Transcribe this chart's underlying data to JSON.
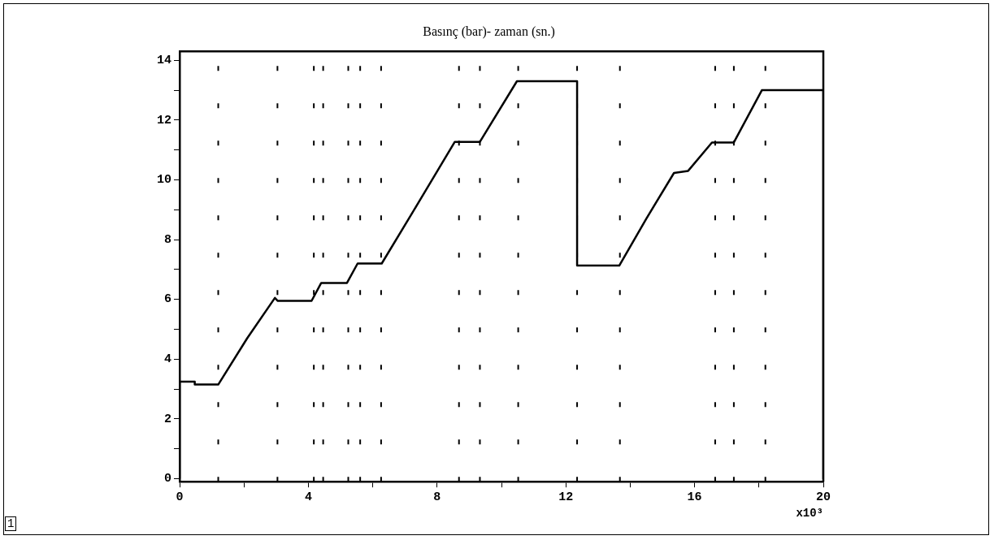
{
  "chart_data": {
    "type": "line",
    "title": "Basınç (bar)- zaman (sn.)",
    "xlabel": "x10³",
    "x": [
      0,
      0,
      0.47,
      0.47,
      1.2,
      2.1,
      2.96,
      3.05,
      4.1,
      4.4,
      5.2,
      5.53,
      6.28,
      7.4,
      8.55,
      9.33,
      10.48,
      12.35,
      12.35,
      13.66,
      14.5,
      15.36,
      15.8,
      16.54,
      17.22,
      18.09,
      20,
      20
    ],
    "series": [
      {
        "color": "#000000",
        "values": [
          0,
          3.25,
          3.25,
          3.15,
          3.15,
          4.7,
          6.05,
          5.95,
          5.95,
          6.55,
          6.55,
          7.2,
          7.2,
          9.2,
          11.27,
          11.27,
          13.3,
          13.3,
          7.13,
          7.13,
          8.7,
          10.23,
          10.3,
          11.25,
          11.25,
          13.0,
          13.0,
          0
        ]
      }
    ],
    "xlim": [
      0,
      20
    ],
    "ylim": [
      -0.1,
      14.3
    ],
    "xticks": [
      0,
      {
        "value": 2,
        "label": null
      },
      4,
      {
        "value": 6,
        "label": null
      },
      8,
      {
        "value": 10,
        "label": null
      },
      12,
      {
        "value": 14,
        "label": null
      },
      16,
      {
        "value": 18,
        "label": null
      },
      20
    ],
    "yticks": [
      0,
      {
        "value": 1,
        "label": null
      },
      2,
      {
        "value": 3,
        "label": null
      },
      4,
      {
        "value": 5,
        "label": null
      },
      6,
      {
        "value": 7,
        "label": null
      },
      8,
      {
        "value": 9,
        "label": null
      },
      10,
      {
        "value": 11,
        "label": null
      },
      12,
      {
        "value": 13,
        "label": null
      },
      14
    ],
    "ref_lines": [
      {
        "axis": "x",
        "value": 1.2,
        "line_style": "dotted"
      },
      {
        "axis": "x",
        "value": 3.04,
        "line_style": "dotted"
      },
      {
        "axis": "x",
        "value": 4.17,
        "line_style": "dotted"
      },
      {
        "axis": "x",
        "value": 4.46,
        "line_style": "dotted"
      },
      {
        "axis": "x",
        "value": 5.24,
        "line_style": "dotted"
      },
      {
        "axis": "x",
        "value": 5.61,
        "line_style": "dotted"
      },
      {
        "axis": "x",
        "value": 6.26,
        "line_style": "dotted"
      },
      {
        "axis": "x",
        "value": 8.68,
        "line_style": "dotted"
      },
      {
        "axis": "x",
        "value": 9.33,
        "line_style": "dotted"
      },
      {
        "axis": "x",
        "value": 10.52,
        "line_style": "dotted"
      },
      {
        "axis": "x",
        "value": 12.35,
        "line_style": "dotted"
      },
      {
        "axis": "x",
        "value": 13.68,
        "line_style": "dotted"
      },
      {
        "axis": "x",
        "value": 16.64,
        "line_style": "dotted"
      },
      {
        "axis": "x",
        "value": 17.22,
        "line_style": "dotted"
      },
      {
        "axis": "x",
        "value": 18.2,
        "line_style": "dotted"
      }
    ],
    "annotations": [
      "1"
    ],
    "grid": false,
    "legend": false,
    "marker": "none",
    "line_style": "solid"
  }
}
